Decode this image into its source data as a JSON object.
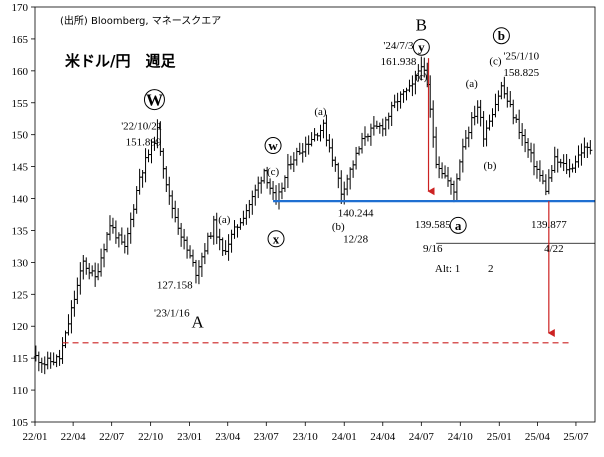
{
  "chart_data": {
    "type": "ohlc",
    "title": "米ドル/円　週足",
    "source": "(出所) Bloomberg, マネースクエア",
    "xlabel": "",
    "ylabel": "",
    "ylim": [
      105,
      170
    ],
    "xlim": [
      "2022-01-01",
      "2025-08-15"
    ],
    "yticks": [
      105,
      110,
      115,
      120,
      125,
      130,
      135,
      140,
      145,
      150,
      155,
      160,
      165,
      170
    ],
    "xticks": [
      {
        "label": "22/01",
        "date": "2022-01-01"
      },
      {
        "label": "22/04",
        "date": "2022-04-01"
      },
      {
        "label": "22/07",
        "date": "2022-07-01"
      },
      {
        "label": "22/10",
        "date": "2022-10-01"
      },
      {
        "label": "23/01",
        "date": "2023-01-01"
      },
      {
        "label": "23/04",
        "date": "2023-04-01"
      },
      {
        "label": "23/07",
        "date": "2023-07-01"
      },
      {
        "label": "23/10",
        "date": "2023-10-01"
      },
      {
        "label": "24/01",
        "date": "2024-01-01"
      },
      {
        "label": "24/04",
        "date": "2024-04-01"
      },
      {
        "label": "24/07",
        "date": "2024-07-01"
      },
      {
        "label": "24/10",
        "date": "2024-10-01"
      },
      {
        "label": "25/01",
        "date": "2025-01-01"
      },
      {
        "label": "25/04",
        "date": "2025-04-01"
      },
      {
        "label": "25/07",
        "date": "2025-07-01"
      }
    ],
    "anchors": [
      {
        "date": "2022-01-03",
        "price": 115.2
      },
      {
        "date": "2022-01-24",
        "price": 114.2
      },
      {
        "date": "2022-02-28",
        "price": 115.0
      },
      {
        "date": "2022-03-14",
        "price": 118.5
      },
      {
        "date": "2022-03-28",
        "price": 122.5
      },
      {
        "date": "2022-04-25",
        "price": 130.0
      },
      {
        "date": "2022-05-23",
        "price": 127.5
      },
      {
        "date": "2022-06-27",
        "price": 136.0
      },
      {
        "date": "2022-08-01",
        "price": 132.0
      },
      {
        "date": "2022-09-05",
        "price": 143.5
      },
      {
        "date": "2022-10-17",
        "price": 150.5
      },
      {
        "date": "2022-11-14",
        "price": 140.0
      },
      {
        "date": "2022-12-19",
        "price": 133.0
      },
      {
        "date": "2023-01-16",
        "price": 128.5
      },
      {
        "date": "2023-02-27",
        "price": 136.0
      },
      {
        "date": "2023-03-20",
        "price": 131.5
      },
      {
        "date": "2023-05-29",
        "price": 140.0
      },
      {
        "date": "2023-06-26",
        "price": 144.5
      },
      {
        "date": "2023-07-24",
        "price": 139.0
      },
      {
        "date": "2023-08-28",
        "price": 146.0
      },
      {
        "date": "2023-10-30",
        "price": 150.5
      },
      {
        "date": "2023-11-13",
        "price": 151.2
      },
      {
        "date": "2023-12-11",
        "price": 145.0
      },
      {
        "date": "2023-12-25",
        "price": 141.0
      },
      {
        "date": "2024-02-19",
        "price": 150.0
      },
      {
        "date": "2024-04-01",
        "price": 151.5
      },
      {
        "date": "2024-05-06",
        "price": 155.5
      },
      {
        "date": "2024-06-10",
        "price": 157.5
      },
      {
        "date": "2024-07-01",
        "price": 161.3
      },
      {
        "date": "2024-07-15",
        "price": 157.5
      },
      {
        "date": "2024-08-05",
        "price": 146.0
      },
      {
        "date": "2024-09-16",
        "price": 141.0
      },
      {
        "date": "2024-10-07",
        "price": 148.5
      },
      {
        "date": "2024-11-11",
        "price": 154.5
      },
      {
        "date": "2024-11-25",
        "price": 150.0
      },
      {
        "date": "2025-01-06",
        "price": 157.5
      },
      {
        "date": "2025-02-10",
        "price": 152.0
      },
      {
        "date": "2025-03-10",
        "price": 147.5
      },
      {
        "date": "2025-04-21",
        "price": 141.5
      },
      {
        "date": "2025-05-12",
        "price": 146.0
      },
      {
        "date": "2025-06-16",
        "price": 144.5
      },
      {
        "date": "2025-07-14",
        "price": 147.5
      },
      {
        "date": "2025-08-04",
        "price": 147.8
      }
    ],
    "hlines": [
      {
        "name": "support-line",
        "price": 139.6,
        "color": "#1f6fd1",
        "from": "2023-07-17",
        "to": "2025-08-15",
        "style": "solid"
      },
      {
        "name": "alt-line",
        "price": 133.0,
        "color": "#000000",
        "from": "2024-08-05",
        "to": "2025-08-15",
        "style": "thin"
      },
      {
        "name": "target-line",
        "price": 117.4,
        "color": "#cc2222",
        "from": "2022-03-07",
        "to": "2025-06-23",
        "style": "dashed"
      }
    ],
    "arrows": [
      {
        "name": "red-arrow-1",
        "date": "2024-07-18",
        "from": 162.0,
        "to": 140.2,
        "color": "#cc2222"
      },
      {
        "name": "red-arrow-2",
        "date": "2025-04-28",
        "from": 139.6,
        "to": 118.0,
        "color": "#cc2222"
      }
    ],
    "annotations": [
      {
        "name": "wave-W",
        "date": "2022-10-10",
        "price": 155.5,
        "text": "W",
        "kind": "circle-big"
      },
      {
        "name": "peak-2022-date",
        "date": "2022-09-10",
        "price": 150.8,
        "text": "'22/10/21",
        "kind": "label"
      },
      {
        "name": "peak-2022-value",
        "date": "2022-09-14",
        "price": 148.3,
        "text": "151.899",
        "kind": "label"
      },
      {
        "name": "low-2023-value",
        "date": "2022-11-27",
        "price": 125.9,
        "text": "127.158",
        "kind": "label"
      },
      {
        "name": "low-2023-date",
        "date": "2022-11-20",
        "price": 121.5,
        "text": "'23/1/16",
        "kind": "label"
      },
      {
        "name": "wave-A",
        "date": "2023-01-20",
        "price": 119.8,
        "text": "A",
        "kind": "big"
      },
      {
        "name": "wave-a-2023",
        "date": "2023-03-24",
        "price": 136.2,
        "text": "(a)",
        "kind": "label"
      },
      {
        "name": "wave-w-small",
        "date": "2023-07-17",
        "price": 148.3,
        "text": "w",
        "kind": "circle"
      },
      {
        "name": "wave-c-2023",
        "date": "2023-07-17",
        "price": 143.7,
        "text": "(c)",
        "kind": "label"
      },
      {
        "name": "wave-x",
        "date": "2023-07-24",
        "price": 133.7,
        "text": "x",
        "kind": "circle"
      },
      {
        "name": "wave-a-2023b",
        "date": "2023-11-06",
        "price": 153.1,
        "text": "(a)",
        "kind": "label"
      },
      {
        "name": "wave-b-2023",
        "date": "2023-12-18",
        "price": 135.1,
        "text": "(b)",
        "kind": "label"
      },
      {
        "name": "low-2023-12-value",
        "date": "2024-01-28",
        "price": 137.2,
        "text": "140.244",
        "kind": "label"
      },
      {
        "name": "low-2023-12-date",
        "date": "2024-01-28",
        "price": 133.1,
        "text": "12/28",
        "kind": "label"
      },
      {
        "name": "wave-B",
        "date": "2024-07-01",
        "price": 166.3,
        "text": "B",
        "kind": "big"
      },
      {
        "name": "wave-y",
        "date": "2024-07-01",
        "price": 163.7,
        "text": "y",
        "kind": "circle"
      },
      {
        "name": "wave-c-2024",
        "date": "2024-07-01",
        "price": 158.6,
        "text": "(c)",
        "kind": "label"
      },
      {
        "name": "peak-2024-date",
        "date": "2024-05-08",
        "price": 163.4,
        "text": "'24/7/3",
        "kind": "label"
      },
      {
        "name": "peak-2024-value",
        "date": "2024-05-08",
        "price": 160.9,
        "text": "161.938",
        "kind": "label"
      },
      {
        "name": "low-2024-value",
        "date": "2024-07-28",
        "price": 135.4,
        "text": "139.585",
        "kind": "label-red"
      },
      {
        "name": "low-2024-date",
        "date": "2024-07-28",
        "price": 131.6,
        "text": "9/16",
        "kind": "label-red"
      },
      {
        "name": "wave-a-circle",
        "date": "2024-09-26",
        "price": 135.8,
        "text": "a",
        "kind": "circle"
      },
      {
        "name": "wave-a-2024",
        "date": "2024-10-28",
        "price": 157.5,
        "text": "(a)",
        "kind": "label"
      },
      {
        "name": "wave-b-2024",
        "date": "2024-12-10",
        "price": 144.6,
        "text": "(b)",
        "kind": "label"
      },
      {
        "name": "wave-c-2025",
        "date": "2024-12-23",
        "price": 161.0,
        "text": "(c)",
        "kind": "label"
      },
      {
        "name": "wave-b-circle",
        "date": "2025-01-06",
        "price": 165.5,
        "text": "b",
        "kind": "circle"
      },
      {
        "name": "peak-2025-date",
        "date": "2025-02-22",
        "price": 161.8,
        "text": "'25/1/10",
        "kind": "label"
      },
      {
        "name": "peak-2025-value",
        "date": "2025-02-22",
        "price": 159.2,
        "text": "158.825",
        "kind": "label"
      },
      {
        "name": "low-2025-value",
        "date": "2025-04-28",
        "price": 135.4,
        "text": "139.877",
        "kind": "label-blue"
      },
      {
        "name": "low-2025-date",
        "date": "2025-05-10",
        "price": 131.6,
        "text": "4/22",
        "kind": "label-blue"
      },
      {
        "name": "alt-label",
        "date": "2024-09-01",
        "price": 128.5,
        "text": "Alt: 1",
        "kind": "label"
      },
      {
        "name": "alt-label-2",
        "date": "2024-12-12",
        "price": 128.5,
        "text": "2",
        "kind": "label"
      }
    ]
  }
}
